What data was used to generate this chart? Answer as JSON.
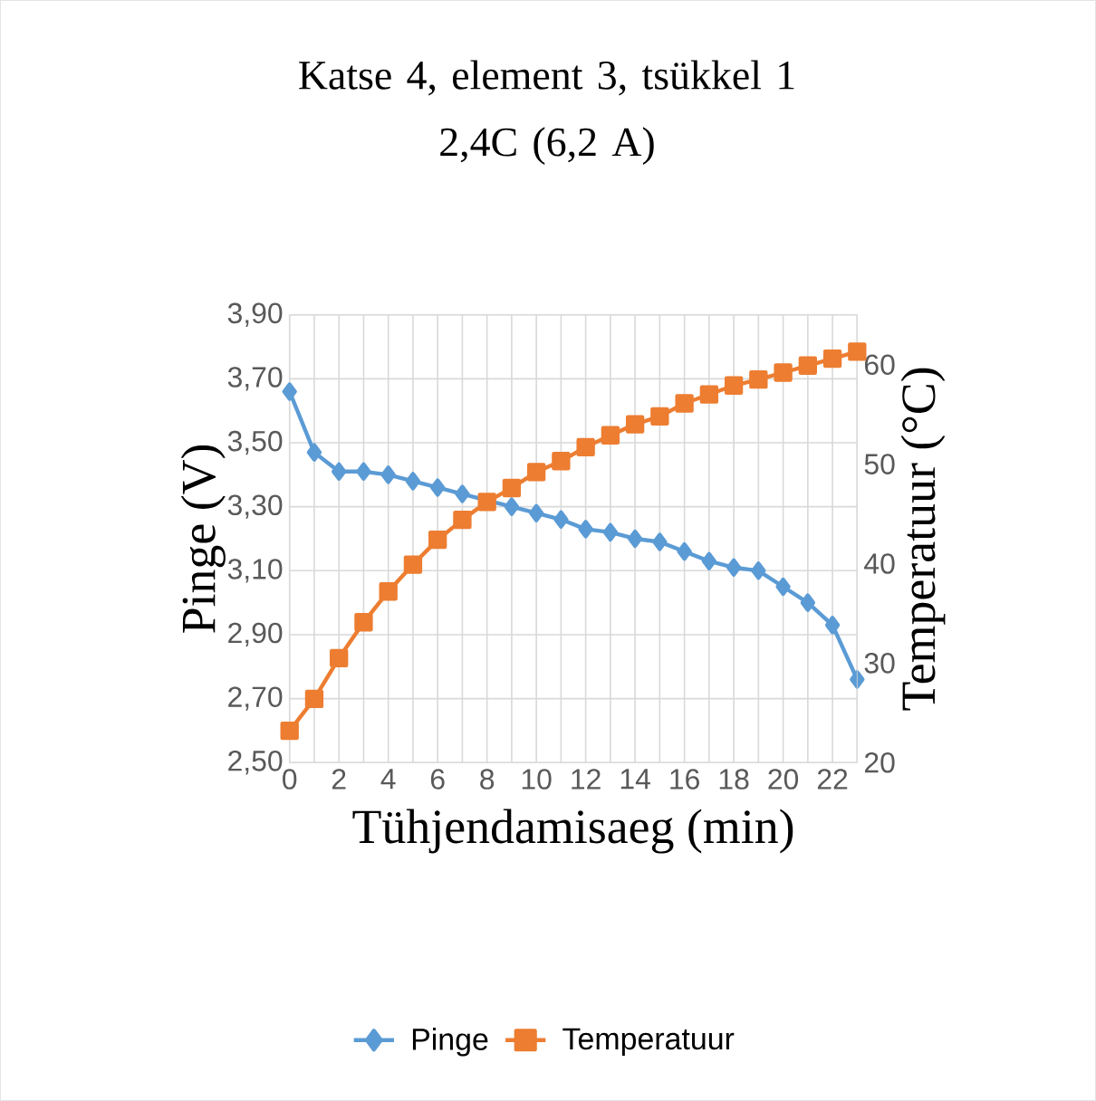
{
  "chart_data": {
    "type": "line",
    "title": "Katse 4, element 3, tsükkel 1",
    "subtitle": "2,4C (6,2 A)",
    "xlabel": "Tühjendamisaeg (min)",
    "ylabel": "Pinge (V)",
    "y2label": "Temperatuur (°C)",
    "x": [
      0,
      1,
      2,
      3,
      4,
      5,
      6,
      7,
      8,
      9,
      10,
      11,
      12,
      13,
      14,
      15,
      16,
      17,
      18,
      19,
      20,
      21,
      22,
      23
    ],
    "xlim": [
      0,
      23
    ],
    "xticks": [
      0,
      {
        "value": 1,
        "label": null
      },
      2,
      {
        "value": 3,
        "label": null
      },
      4,
      {
        "value": 5,
        "label": null
      },
      6,
      {
        "value": 7,
        "label": null
      },
      8,
      {
        "value": 9,
        "label": null
      },
      10,
      {
        "value": 11,
        "label": null
      },
      12,
      {
        "value": 13,
        "label": null
      },
      14,
      {
        "value": 15,
        "label": null
      },
      16,
      {
        "value": 17,
        "label": null
      },
      18,
      {
        "value": 19,
        "label": null
      },
      20,
      {
        "value": 21,
        "label": null
      },
      22,
      {
        "value": 23,
        "label": null
      }
    ],
    "ylim": [
      2.5,
      3.9
    ],
    "yticks": [
      {
        "value": 2.5,
        "label": "2,50"
      },
      {
        "value": 2.7,
        "label": "2,70"
      },
      {
        "value": 2.9,
        "label": "2,90"
      },
      {
        "value": 3.1,
        "label": "3,10"
      },
      {
        "value": 3.3,
        "label": "3,30"
      },
      {
        "value": 3.5,
        "label": "3,50"
      },
      {
        "value": 3.7,
        "label": "3,70"
      },
      {
        "value": 3.9,
        "label": "3,90"
      }
    ],
    "y2lim": [
      20,
      65
    ],
    "y2ticks": [
      20,
      30,
      40,
      50,
      60
    ],
    "series": [
      {
        "name": "Pinge",
        "color": "#5b9bd5",
        "marker": "diamond",
        "values": [
          3.66,
          3.47,
          3.41,
          3.41,
          3.4,
          3.38,
          3.36,
          3.34,
          null,
          3.3,
          3.28,
          3.26,
          3.23,
          3.22,
          3.2,
          3.19,
          3.16,
          3.13,
          3.11,
          3.1,
          3.05,
          3.0,
          2.93,
          2.76
        ]
      },
      {
        "name": "Temperatuur",
        "color": "#ed7d31",
        "marker": "square",
        "axis": "y2",
        "values": [
          23.2,
          26.4,
          30.5,
          34.1,
          37.2,
          39.9,
          42.4,
          44.4,
          46.2,
          47.6,
          49.2,
          50.3,
          51.7,
          52.9,
          54.0,
          54.8,
          56.1,
          57.0,
          57.9,
          58.5,
          59.2,
          59.9,
          60.6,
          61.3
        ]
      }
    ],
    "grid": true,
    "legend": "bottom",
    "line_style": "solid"
  }
}
